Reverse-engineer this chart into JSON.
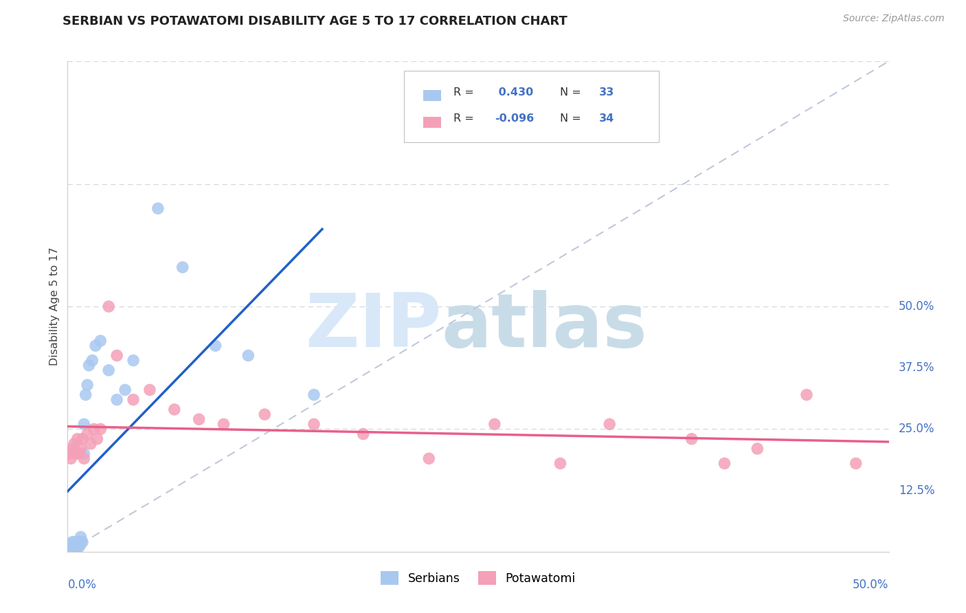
{
  "title": "SERBIAN VS POTAWATOMI DISABILITY AGE 5 TO 17 CORRELATION CHART",
  "source": "Source: ZipAtlas.com",
  "ylabel": "Disability Age 5 to 17",
  "legend_serbian": "Serbians",
  "legend_potawatomi": "Potawatomi",
  "r_serbian": "0.430",
  "n_serbian": "33",
  "r_potawatomi": "-0.096",
  "n_potawatomi": "34",
  "xlim": [
    0.0,
    0.5
  ],
  "ylim": [
    0.0,
    0.5
  ],
  "background_color": "#ffffff",
  "serbian_color": "#a8c8f0",
  "potawatomi_color": "#f4a0b8",
  "serbian_line_color": "#2060c8",
  "potawatomi_line_color": "#e8608a",
  "diagonal_color": "#c0c8d8",
  "grid_color": "#d4d8e0",
  "axis_label_color": "#4472c4",
  "title_color": "#222222",
  "watermark_zip_color": "#d8e8f8",
  "watermark_atlas_color": "#c8dce8",
  "serbian_x": [
    0.001,
    0.002,
    0.003,
    0.003,
    0.004,
    0.004,
    0.005,
    0.005,
    0.005,
    0.006,
    0.006,
    0.007,
    0.007,
    0.008,
    0.008,
    0.009,
    0.01,
    0.01,
    0.011,
    0.012,
    0.013,
    0.015,
    0.017,
    0.02,
    0.025,
    0.03,
    0.035,
    0.04,
    0.055,
    0.07,
    0.09,
    0.11,
    0.15
  ],
  "serbian_y": [
    0.005,
    0.008,
    0.005,
    0.01,
    0.003,
    0.007,
    0.005,
    0.008,
    0.01,
    0.005,
    0.01,
    0.005,
    0.01,
    0.008,
    0.015,
    0.01,
    0.1,
    0.13,
    0.16,
    0.17,
    0.19,
    0.195,
    0.21,
    0.215,
    0.185,
    0.155,
    0.165,
    0.195,
    0.35,
    0.29,
    0.21,
    0.2,
    0.16
  ],
  "potawatomi_x": [
    0.001,
    0.002,
    0.003,
    0.004,
    0.005,
    0.006,
    0.007,
    0.008,
    0.009,
    0.01,
    0.012,
    0.014,
    0.016,
    0.018,
    0.02,
    0.025,
    0.03,
    0.04,
    0.05,
    0.065,
    0.08,
    0.095,
    0.12,
    0.15,
    0.18,
    0.22,
    0.26,
    0.3,
    0.33,
    0.38,
    0.4,
    0.42,
    0.45,
    0.48
  ],
  "potawatomi_y": [
    0.1,
    0.095,
    0.105,
    0.11,
    0.1,
    0.115,
    0.1,
    0.105,
    0.115,
    0.095,
    0.12,
    0.11,
    0.125,
    0.115,
    0.125,
    0.25,
    0.2,
    0.155,
    0.165,
    0.145,
    0.135,
    0.13,
    0.14,
    0.13,
    0.12,
    0.095,
    0.13,
    0.09,
    0.13,
    0.115,
    0.09,
    0.105,
    0.16,
    0.09
  ]
}
